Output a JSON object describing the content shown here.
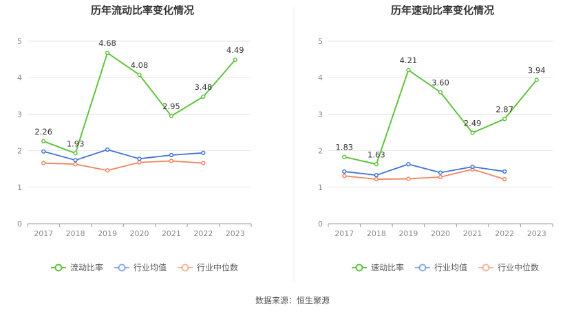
{
  "source": "数据来源：恒生聚源",
  "chart_data": [
    {
      "type": "line",
      "title": "历年流动比率变化情况",
      "categories": [
        "2017",
        "2018",
        "2019",
        "2020",
        "2021",
        "2022",
        "2023"
      ],
      "ylim": [
        0,
        5
      ],
      "yticks": [
        0,
        1,
        2,
        3,
        4,
        5
      ],
      "grid": true,
      "legend_position": "bottom",
      "series": [
        {
          "name": "流动比率",
          "color": "#5fc33b",
          "values": [
            2.26,
            1.93,
            4.68,
            4.08,
            2.95,
            3.48,
            4.49
          ],
          "labels": [
            "2.26",
            "1.93",
            "4.68",
            "4.08",
            "2.95",
            "3.48",
            "4.49"
          ]
        },
        {
          "name": "行业均值",
          "color": "#3f72d9",
          "values": [
            1.98,
            1.74,
            2.03,
            1.78,
            1.88,
            1.94,
            null
          ]
        },
        {
          "name": "行业中位数",
          "color": "#f0845a",
          "values": [
            1.66,
            1.63,
            1.46,
            1.68,
            1.72,
            1.66,
            null
          ]
        }
      ]
    },
    {
      "type": "line",
      "title": "历年速动比率变化情况",
      "categories": [
        "2017",
        "2018",
        "2019",
        "2020",
        "2021",
        "2022",
        "2023"
      ],
      "ylim": [
        0,
        5
      ],
      "yticks": [
        0,
        1,
        2,
        3,
        4,
        5
      ],
      "grid": true,
      "legend_position": "bottom",
      "series": [
        {
          "name": "速动比率",
          "color": "#5fc33b",
          "values": [
            1.83,
            1.63,
            4.21,
            3.6,
            2.49,
            2.87,
            3.94
          ],
          "labels": [
            "1.83",
            "1.63",
            "4.21",
            "3.60",
            "2.49",
            "2.87",
            "3.94"
          ]
        },
        {
          "name": "行业均值",
          "color": "#3f72d9",
          "values": [
            1.43,
            1.33,
            1.63,
            1.4,
            1.56,
            1.43,
            null
          ]
        },
        {
          "name": "行业中位数",
          "color": "#f0845a",
          "values": [
            1.31,
            1.22,
            1.23,
            1.28,
            1.49,
            1.22,
            null
          ]
        }
      ]
    }
  ]
}
